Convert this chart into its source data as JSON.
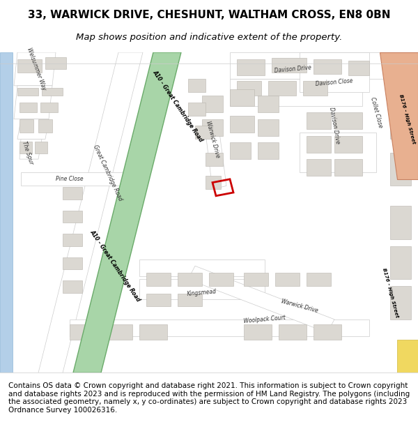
{
  "title_line1": "33, WARWICK DRIVE, CHESHUNT, WALTHAM CROSS, EN8 0BN",
  "title_line2": "Map shows position and indicative extent of the property.",
  "title_fontsize": 11,
  "subtitle_fontsize": 9.5,
  "footer_text": "Contains OS data © Crown copyright and database right 2021. This information is subject to Crown copyright and database rights 2023 and is reproduced with the permission of HM Land Registry. The polygons (including the associated geometry, namely x, y co-ordinates) are subject to Crown copyright and database rights 2023 Ordnance Survey 100026316.",
  "footer_fontsize": 7.5,
  "map_bg": "#f2f0ed",
  "blue_strip_color": "#b3cfe8",
  "a10_green_color": "#a8d5a8",
  "a10_green_edge": "#6aaa6a",
  "b176_color": "#e8b090",
  "b176_edge": "#c88060",
  "yellow_road": "#f0d860",
  "plot_outline_color": "#cc0000",
  "white_road": "#ffffff",
  "road_ec": "#cccccc",
  "bldg_fc": "#dbd8d2",
  "bldg_ec": "#b8b5ae"
}
